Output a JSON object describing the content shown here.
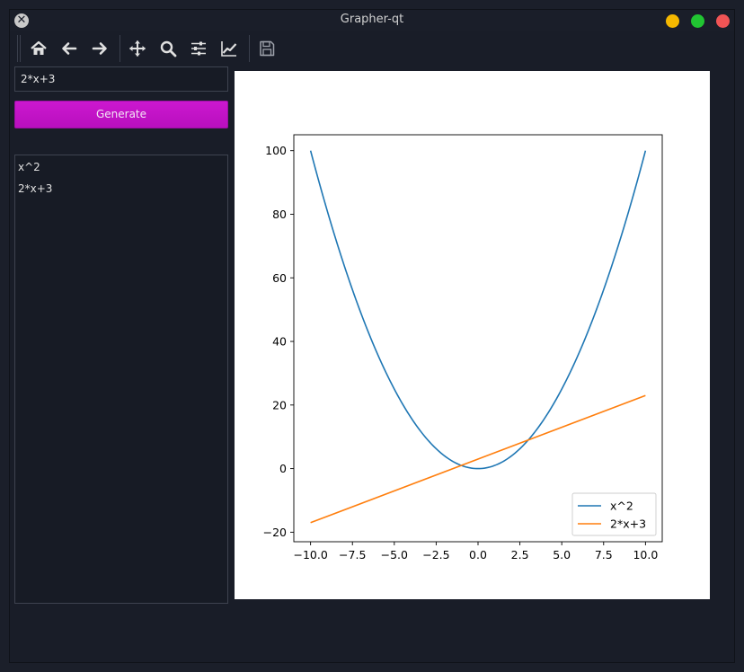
{
  "window": {
    "title": "Grapher-qt",
    "controls": {
      "minimize_color": "#f5b800",
      "maximize_color": "#21c532",
      "close_color": "#f05455"
    }
  },
  "toolbar": {
    "buttons": [
      {
        "name": "home",
        "icon": "home-icon"
      },
      {
        "name": "back",
        "icon": "arrow-left-icon"
      },
      {
        "name": "forward",
        "icon": "arrow-right-icon"
      },
      {
        "name": "pan",
        "icon": "move-icon"
      },
      {
        "name": "zoom",
        "icon": "magnifier-icon"
      },
      {
        "name": "configure-subplots",
        "icon": "sliders-icon"
      },
      {
        "name": "edit-axes",
        "icon": "line-chart-icon"
      },
      {
        "name": "save",
        "icon": "floppy-disk-icon"
      }
    ]
  },
  "sidebar": {
    "input_value": "2*x+3",
    "generate_label": "Generate",
    "expressions": [
      "x^2",
      "2*x+3"
    ]
  },
  "chart_data": {
    "type": "line",
    "title": "",
    "xlabel": "",
    "ylabel": "",
    "xlim": [
      -11,
      11
    ],
    "ylim": [
      -23,
      105
    ],
    "xticks": [
      -10.0,
      -7.5,
      -5.0,
      -2.5,
      0.0,
      2.5,
      5.0,
      7.5,
      10.0
    ],
    "xtick_labels": [
      "−10.0",
      "−7.5",
      "−5.0",
      "−2.5",
      "0.0",
      "2.5",
      "5.0",
      "7.5",
      "10.0"
    ],
    "yticks": [
      -20,
      0,
      20,
      40,
      60,
      80,
      100
    ],
    "ytick_labels": [
      "−20",
      "0",
      "20",
      "40",
      "60",
      "80",
      "100"
    ],
    "grid": false,
    "legend": "lower-right",
    "series": [
      {
        "name": "x^2",
        "color": "#1f77b4",
        "x": [
          -10,
          -8,
          -6,
          -4,
          -2,
          -1,
          0,
          1,
          2,
          4,
          6,
          8,
          10
        ],
        "y": [
          100,
          64,
          36,
          16,
          4,
          1,
          0,
          1,
          4,
          16,
          36,
          64,
          100
        ]
      },
      {
        "name": "2*x+3",
        "color": "#ff7f0e",
        "x": [
          -10,
          10
        ],
        "y": [
          -17,
          23
        ]
      }
    ]
  }
}
